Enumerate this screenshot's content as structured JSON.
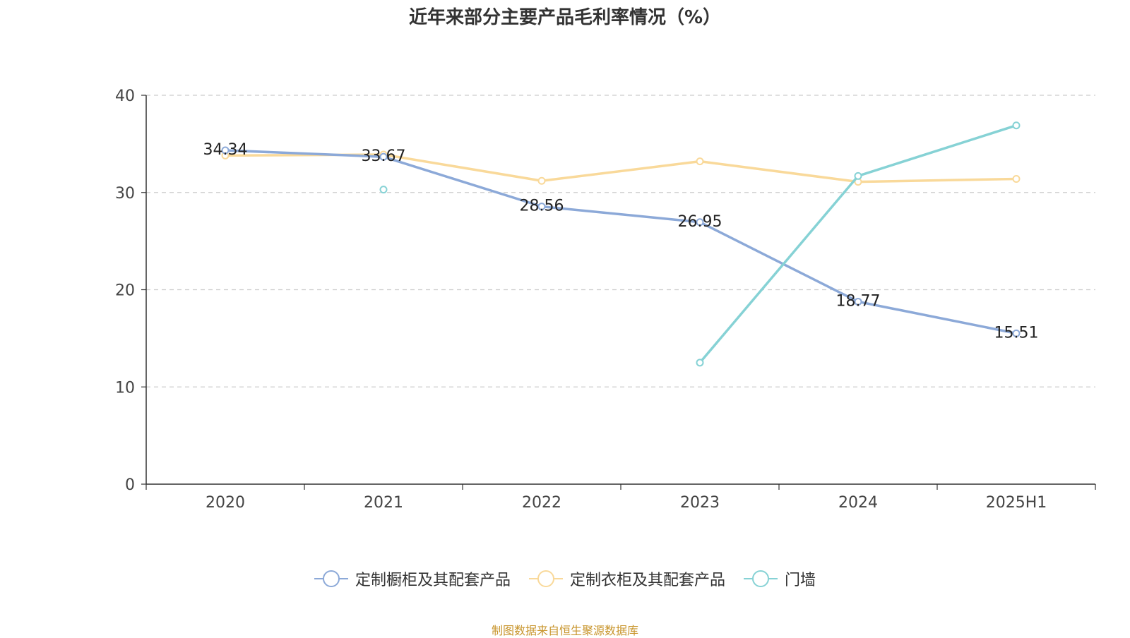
{
  "title": "近年来部分主要产品毛利率情况（%）",
  "source": "制图数据来自恒生聚源数据库",
  "chart_data": {
    "type": "line",
    "title": "近年来部分主要产品毛利率情况（%）",
    "categories": [
      "2020",
      "2021",
      "2022",
      "2023",
      "2024",
      "2025H1"
    ],
    "ylim": [
      0,
      40
    ],
    "yticks": [
      0,
      10,
      20,
      30,
      40
    ],
    "grid": true,
    "legend_position": "bottom",
    "series": [
      {
        "name": "定制橱柜及其配套产品",
        "color": "#8ca9d8",
        "values": [
          34.34,
          33.67,
          28.56,
          26.95,
          18.77,
          15.51
        ],
        "labels": [
          "34.34",
          "33.67",
          "28.56",
          "26.95",
          "18.77",
          "15.51"
        ]
      },
      {
        "name": "定制衣柜及其配套产品",
        "color": "#f9d99a",
        "values": [
          33.8,
          33.9,
          31.2,
          33.2,
          31.1,
          31.4
        ]
      },
      {
        "name": "门墙",
        "color": "#86d2d5",
        "values": [
          null,
          30.3,
          null,
          12.5,
          31.7,
          36.9
        ]
      }
    ]
  }
}
